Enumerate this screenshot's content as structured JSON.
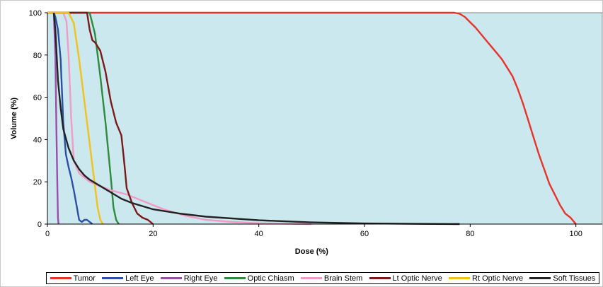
{
  "chart_data": {
    "type": "line",
    "title": "",
    "xlabel": "Dose (%)",
    "ylabel": "Volume (%)",
    "xlim": [
      0,
      105
    ],
    "ylim": [
      0,
      100
    ],
    "xticks": [
      0,
      20,
      40,
      60,
      80,
      100
    ],
    "yticks": [
      0,
      20,
      40,
      60,
      80,
      100
    ],
    "grid": false,
    "plot_background": "#cbe8ee",
    "legend_position": "bottom",
    "series": [
      {
        "name": "Tumor",
        "color": "#e8322a",
        "x": [
          0,
          75,
          77,
          78,
          79,
          80,
          81,
          82,
          83,
          84,
          85,
          86,
          87,
          88,
          89,
          90,
          91,
          92,
          93,
          94,
          95,
          96,
          97,
          98,
          99,
          100
        ],
        "y": [
          100,
          100,
          100,
          99.5,
          98,
          95.5,
          93,
          90,
          87,
          84,
          81,
          78,
          74,
          70,
          64,
          57,
          49,
          41,
          33,
          26,
          19,
          14,
          9,
          5,
          3,
          0
        ]
      },
      {
        "name": "Left Eye",
        "color": "#2e4fa6",
        "x": [
          1.2,
          1.5,
          2,
          2.5,
          3,
          3.5,
          4,
          4.5,
          5,
          5.5,
          6,
          6.5,
          7,
          7.5,
          8,
          8.5
        ],
        "y": [
          100,
          98,
          92,
          78,
          48,
          33,
          27,
          22,
          16,
          9,
          2,
          1,
          2,
          2,
          1,
          0
        ]
      },
      {
        "name": "Right Eye",
        "color": "#9b4ea8",
        "x": [
          1.2,
          1.5,
          1.7,
          1.9,
          2.0,
          2.1
        ],
        "y": [
          100,
          80,
          45,
          15,
          3,
          0
        ]
      },
      {
        "name": "Optic Chiasm",
        "color": "#2f8a3e",
        "x": [
          0,
          6,
          8,
          9,
          10,
          11,
          12,
          12.5,
          13,
          13.5
        ],
        "y": [
          100,
          100,
          100,
          90,
          70,
          48,
          22,
          8,
          2,
          0
        ]
      },
      {
        "name": "Brain Stem",
        "color": "#f29bc6",
        "x": [
          2,
          3,
          3.6,
          4,
          4.5,
          5,
          6,
          8,
          10,
          12,
          15,
          18,
          22,
          26,
          30,
          35,
          40,
          50
        ],
        "y": [
          100,
          100,
          96,
          80,
          50,
          30,
          24,
          20,
          18,
          16,
          14,
          11,
          7,
          4,
          2,
          1,
          0.4,
          0
        ]
      },
      {
        "name": "Lt Optic Nerve",
        "color": "#7a1a1a",
        "x": [
          0,
          6.5,
          7.5,
          8,
          8.5,
          9,
          10,
          11,
          12,
          13,
          14,
          14.5,
          15,
          16,
          17,
          18,
          19,
          20
        ],
        "y": [
          100,
          100,
          100,
          92,
          87,
          86,
          82,
          72,
          58,
          48,
          42,
          30,
          17,
          10,
          5,
          3,
          2,
          0
        ]
      },
      {
        "name": "Rt Optic Nerve",
        "color": "#f3c21a",
        "x": [
          0,
          4,
          5,
          6,
          7,
          8,
          9,
          9.5,
          10,
          10.5
        ],
        "y": [
          100,
          100,
          95,
          78,
          58,
          38,
          18,
          8,
          2,
          0
        ]
      },
      {
        "name": "Soft Tissues",
        "color": "#222222",
        "x": [
          1.2,
          1.5,
          2,
          2.5,
          3,
          4,
          5,
          6,
          7,
          8,
          10,
          12,
          14,
          16,
          18,
          20,
          25,
          30,
          40,
          50,
          60,
          70,
          78
        ],
        "y": [
          100,
          92,
          68,
          55,
          45,
          36,
          30,
          26,
          23,
          21,
          18,
          15,
          12,
          10,
          8.5,
          7,
          5,
          3.5,
          1.8,
          0.8,
          0.3,
          0.1,
          0
        ]
      }
    ]
  }
}
